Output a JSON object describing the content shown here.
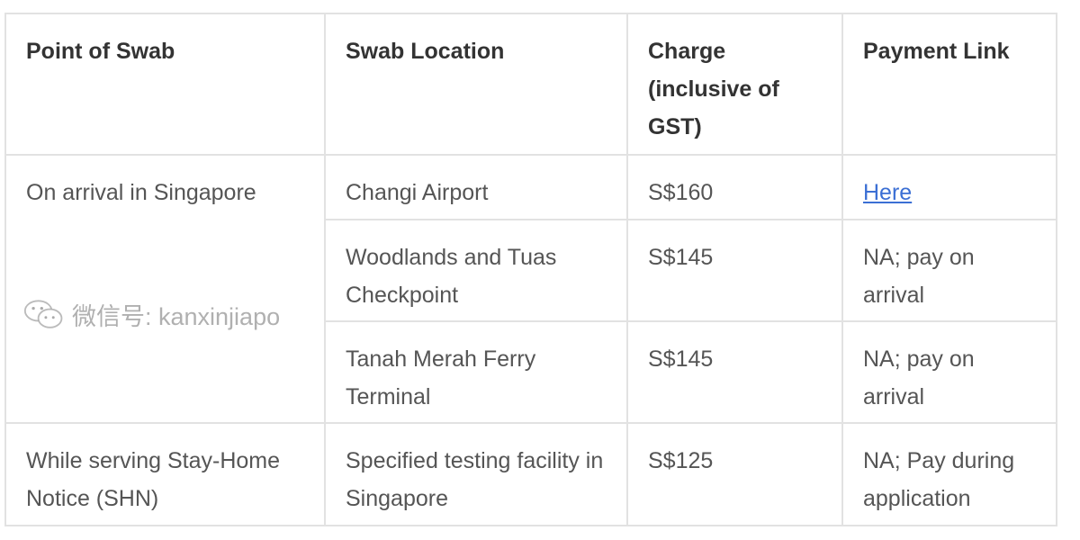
{
  "table": {
    "headers": [
      "Point of Swab",
      "Swab Location",
      "Charge (inclusive of GST)",
      "Payment Link"
    ],
    "groups": [
      {
        "point": "On arrival in Singapore",
        "rows": [
          {
            "location": "Changi Airport",
            "charge": "S$160",
            "payment": "Here",
            "payment_is_link": true
          },
          {
            "location": "Woodlands and Tuas Checkpoint",
            "charge": "S$145",
            "payment": "NA; pay on arrival"
          },
          {
            "location": "Tanah Merah Ferry Terminal",
            "charge": "S$145",
            "payment": "NA; pay on arrival"
          }
        ]
      },
      {
        "point": "While serving Stay-Home Notice (SHN)",
        "rows": [
          {
            "location": "Specified testing facility in Singapore",
            "charge": "S$125",
            "payment": "NA; Pay during application"
          }
        ]
      }
    ],
    "link_color": "#3b6fd4"
  },
  "watermark": {
    "text": "微信号: kanxinjiapo",
    "icon": "wechat-icon"
  }
}
